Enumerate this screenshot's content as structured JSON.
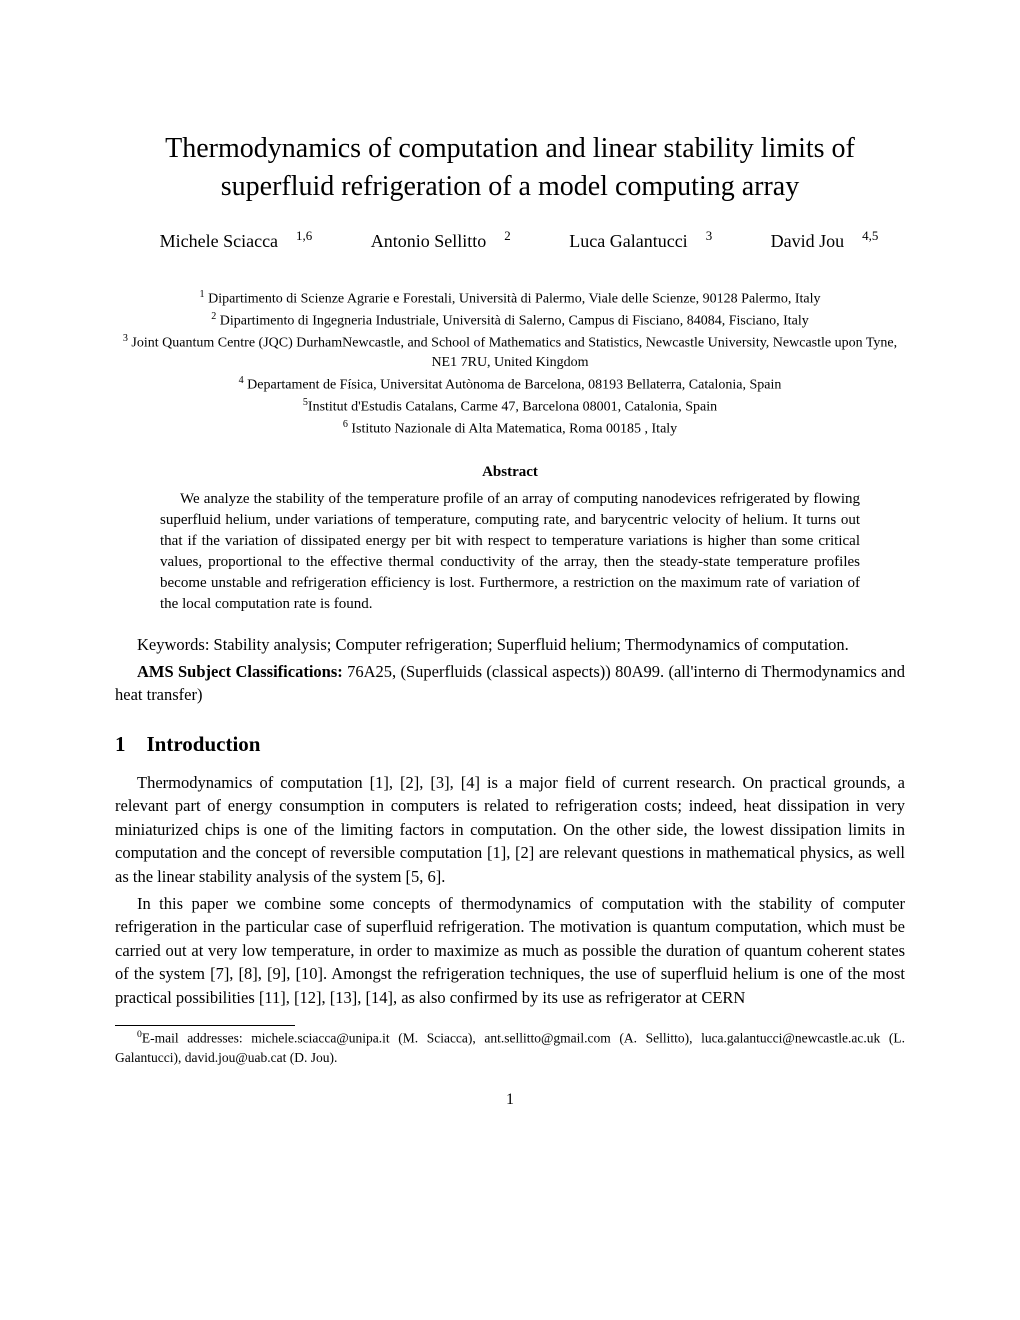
{
  "title": "Thermodynamics of computation and linear stability limits of superfluid refrigeration of a model computing array",
  "authors": [
    {
      "name": "Michele Sciacca",
      "sup": "1,6"
    },
    {
      "name": "Antonio Sellitto",
      "sup": "2"
    },
    {
      "name": "Luca Galantucci",
      "sup": "3"
    },
    {
      "name": "David Jou",
      "sup": "4,5"
    }
  ],
  "affiliations": [
    {
      "sup": "1",
      "text": " Dipartimento di Scienze Agrarie e Forestali, Università di Palermo, Viale delle Scienze, 90128 Palermo, Italy"
    },
    {
      "sup": "2",
      "text": " Dipartimento di Ingegneria Industriale, Università di Salerno, Campus di Fisciano, 84084, Fisciano, Italy"
    },
    {
      "sup": "3",
      "text": " Joint Quantum Centre (JQC) DurhamNewcastle, and School of Mathematics and Statistics, Newcastle University, Newcastle upon Tyne, NE1 7RU, United Kingdom"
    },
    {
      "sup": "4",
      "text": " Departament de Física, Universitat Autònoma de Barcelona, 08193 Bellaterra, Catalonia, Spain"
    },
    {
      "sup": "5",
      "text": "Institut d'Estudis Catalans, Carme 47, Barcelona 08001, Catalonia, Spain"
    },
    {
      "sup": "6",
      "text": " Istituto Nazionale di Alta Matematica, Roma 00185 , Italy"
    }
  ],
  "abstract_heading": "Abstract",
  "abstract": "We analyze the stability of the temperature profile of an array of computing nanodevices refrigerated by flowing superfluid helium, under variations of temperature, computing rate, and barycentric velocity of helium. It turns out that if the variation of dissipated energy per bit with respect to temperature variations is higher than some critical values, proportional to the effective thermal conductivity of the array, then the steady-state temperature profiles become unstable and refrigeration efficiency is lost. Furthermore, a restriction on the maximum rate of variation of the local computation rate is found.",
  "keywords": "Keywords: Stability analysis; Computer refrigeration; Superfluid helium; Thermodynamics of computation.",
  "ams_label": "AMS Subject Classifications:",
  "ams_text": " 76A25, (Superfluids (classical aspects)) 80A99. (all'interno di Thermodynamics and heat transfer)",
  "section_number": "1",
  "section_title": "Introduction",
  "para1": "Thermodynamics of computation [1], [2], [3], [4] is a major field of current research. On practical grounds, a relevant part of energy consumption in computers is related to refrigeration costs; indeed, heat dissipation in very miniaturized chips is one of the limiting factors in computation. On the other side, the lowest dissipation limits in computation and the concept of reversible computation [1], [2] are relevant questions in mathematical physics, as well as the linear stability analysis of the system [5, 6].",
  "para2": "In this paper we combine some concepts of thermodynamics of computation with the stability of computer refrigeration in the particular case of superfluid refrigeration. The motivation is quantum computation, which must be carried out at very low temperature, in order to maximize as much as possible the duration of quantum coherent states of the system [7], [8], [9], [10]. Amongst the refrigeration techniques, the use of superfluid helium is one of the most practical possibilities [11], [12], [13], [14], as also confirmed by its use as refrigerator at CERN",
  "footnote_sup": "0",
  "footnote": "E-mail addresses: michele.sciacca@unipa.it (M. Sciacca), ant.sellitto@gmail.com (A. Sellitto), luca.galantucci@newcastle.ac.uk (L. Galantucci), david.jou@uab.cat (D. Jou).",
  "page_number": "1"
}
